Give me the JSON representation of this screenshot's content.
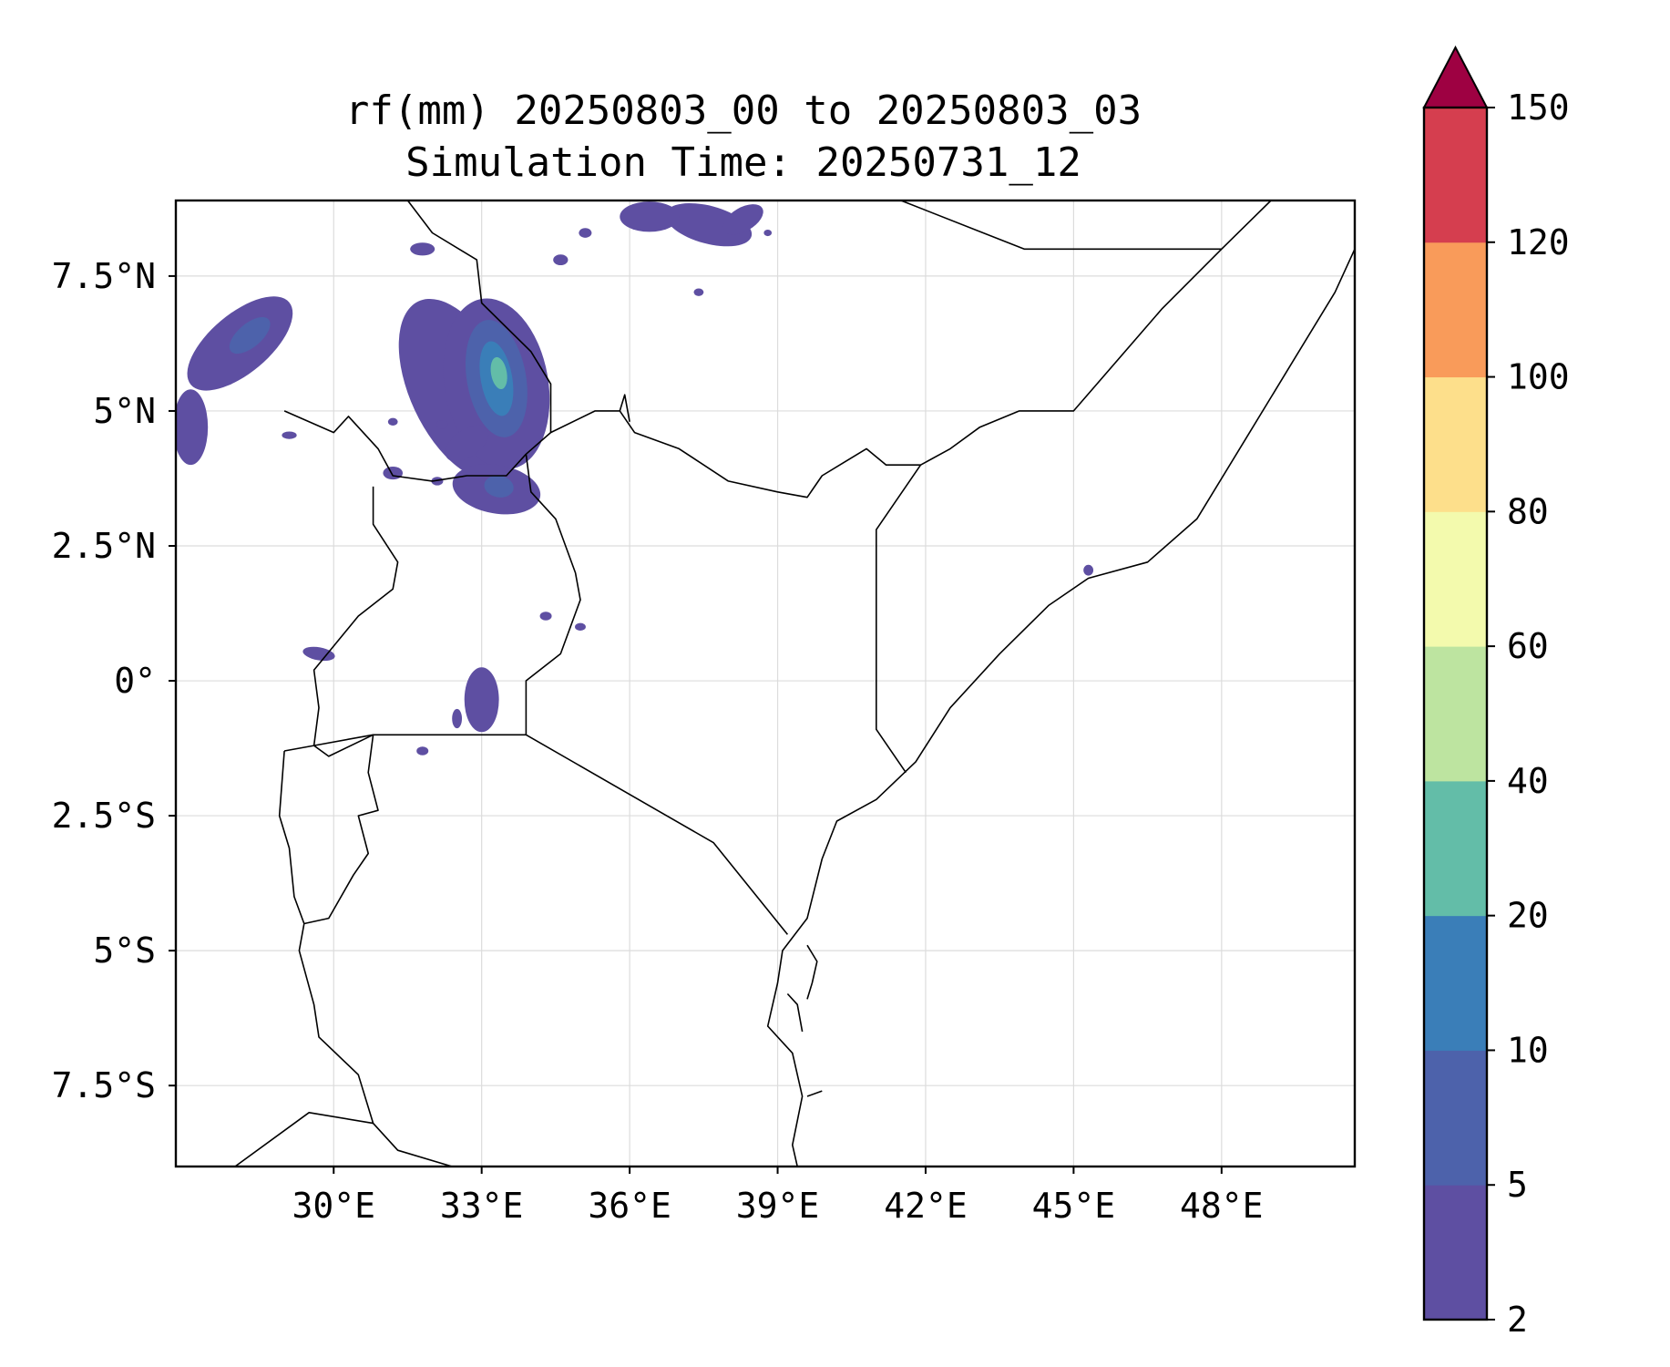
{
  "figure": {
    "title_line1": "rf(mm) 20250803_00 to 20250803_03",
    "title_line2": "Simulation Time: 20250731_12"
  },
  "map": {
    "lon_range": [
      26.8,
      50.7
    ],
    "lat_range": [
      -9.0,
      8.9
    ],
    "x_ticks": [
      {
        "value": 30,
        "label": "30°E"
      },
      {
        "value": 33,
        "label": "33°E"
      },
      {
        "value": 36,
        "label": "36°E"
      },
      {
        "value": 39,
        "label": "39°E"
      },
      {
        "value": 42,
        "label": "42°E"
      },
      {
        "value": 45,
        "label": "45°E"
      },
      {
        "value": 48,
        "label": "48°E"
      }
    ],
    "y_ticks": [
      {
        "value": 7.5,
        "label": "7.5°N"
      },
      {
        "value": 5,
        "label": "5°N"
      },
      {
        "value": 2.5,
        "label": "2.5°N"
      },
      {
        "value": 0,
        "label": "0°"
      },
      {
        "value": -2.5,
        "label": "2.5°S"
      },
      {
        "value": -5,
        "label": "5°S"
      },
      {
        "value": -7.5,
        "label": "7.5°S"
      }
    ],
    "grid": true,
    "rain_cells": [
      {
        "lon": 32.55,
        "lat": 5.4,
        "rx": 1.0,
        "ry": 1.8,
        "rot": -25,
        "level": 0
      },
      {
        "lon": 33.3,
        "lat": 5.5,
        "rx": 1.05,
        "ry": 1.6,
        "rot": -10,
        "level": 0
      },
      {
        "lon": 33.3,
        "lat": 5.6,
        "rx": 0.6,
        "ry": 1.1,
        "rot": -10,
        "level": 1
      },
      {
        "lon": 33.3,
        "lat": 5.6,
        "rx": 0.32,
        "ry": 0.7,
        "rot": -10,
        "level": 2
      },
      {
        "lon": 33.35,
        "lat": 5.7,
        "rx": 0.16,
        "ry": 0.3,
        "rot": -10,
        "level": 3
      },
      {
        "lon": 33.3,
        "lat": 3.55,
        "rx": 0.9,
        "ry": 0.45,
        "rot": 10,
        "level": 0
      },
      {
        "lon": 33.35,
        "lat": 3.6,
        "rx": 0.3,
        "ry": 0.2,
        "rot": 10,
        "level": 1
      },
      {
        "lon": 32.7,
        "lat": 4.4,
        "rx": 0.5,
        "ry": 0.25,
        "rot": -35,
        "level": 0
      },
      {
        "lon": 28.1,
        "lat": 6.25,
        "rx": 1.3,
        "ry": 0.55,
        "rot": -40,
        "level": 0
      },
      {
        "lon": 28.3,
        "lat": 6.4,
        "rx": 0.5,
        "ry": 0.22,
        "rot": -40,
        "level": 1
      },
      {
        "lon": 27.1,
        "lat": 4.7,
        "rx": 0.35,
        "ry": 0.7,
        "rot": 0,
        "level": 0
      },
      {
        "lon": 37.6,
        "lat": 8.45,
        "rx": 0.9,
        "ry": 0.35,
        "rot": 15,
        "level": 0
      },
      {
        "lon": 36.4,
        "lat": 8.6,
        "rx": 0.6,
        "ry": 0.28,
        "rot": 0,
        "level": 0
      },
      {
        "lon": 38.3,
        "lat": 8.55,
        "rx": 0.45,
        "ry": 0.22,
        "rot": -30,
        "level": 0
      },
      {
        "lon": 33.0,
        "lat": -0.35,
        "rx": 0.35,
        "ry": 0.6,
        "rot": 0,
        "level": 0
      },
      {
        "lon": 32.5,
        "lat": -0.7,
        "rx": 0.1,
        "ry": 0.18,
        "rot": 0,
        "level": 0
      },
      {
        "lon": 29.7,
        "lat": 0.5,
        "rx": 0.33,
        "ry": 0.12,
        "rot": 10,
        "level": 0
      },
      {
        "lon": 31.8,
        "lat": 8.0,
        "rx": 0.25,
        "ry": 0.12,
        "rot": 0,
        "level": 0
      },
      {
        "lon": 34.6,
        "lat": 7.8,
        "rx": 0.15,
        "ry": 0.1,
        "rot": 0,
        "level": 0
      },
      {
        "lon": 35.1,
        "lat": 8.3,
        "rx": 0.13,
        "ry": 0.09,
        "rot": 0,
        "level": 0
      },
      {
        "lon": 34.3,
        "lat": 1.2,
        "rx": 0.12,
        "ry": 0.08,
        "rot": 0,
        "level": 0
      },
      {
        "lon": 35.0,
        "lat": 1.0,
        "rx": 0.11,
        "ry": 0.07,
        "rot": 0,
        "level": 0
      },
      {
        "lon": 31.8,
        "lat": -1.3,
        "rx": 0.12,
        "ry": 0.08,
        "rot": 0,
        "level": 0
      },
      {
        "lon": 31.2,
        "lat": 3.85,
        "rx": 0.2,
        "ry": 0.12,
        "rot": 0,
        "level": 0
      },
      {
        "lon": 32.1,
        "lat": 3.7,
        "rx": 0.12,
        "ry": 0.08,
        "rot": 0,
        "level": 0
      },
      {
        "lon": 31.2,
        "lat": 4.8,
        "rx": 0.1,
        "ry": 0.07,
        "rot": 0,
        "level": 0
      },
      {
        "lon": 32.2,
        "lat": 4.75,
        "rx": 0.12,
        "ry": 0.08,
        "rot": 0,
        "level": 0
      },
      {
        "lon": 29.1,
        "lat": 4.55,
        "rx": 0.15,
        "ry": 0.07,
        "rot": 0,
        "level": 0
      },
      {
        "lon": 45.3,
        "lat": 2.05,
        "rx": 0.1,
        "ry": 0.1,
        "rot": 0,
        "level": 0
      },
      {
        "lon": 37.4,
        "lat": 7.2,
        "rx": 0.1,
        "ry": 0.07,
        "rot": 0,
        "level": 0
      },
      {
        "lon": 38.8,
        "lat": 8.3,
        "rx": 0.08,
        "ry": 0.06,
        "rot": 0,
        "level": 0
      }
    ],
    "borders": [
      [
        [
          29.0,
          5.0
        ],
        [
          30.0,
          4.6
        ],
        [
          30.3,
          4.9
        ],
        [
          30.9,
          4.3
        ],
        [
          31.2,
          3.8
        ],
        [
          32.0,
          3.7
        ],
        [
          32.7,
          3.8
        ],
        [
          33.5,
          3.8
        ],
        [
          33.9,
          4.2
        ],
        [
          34.4,
          4.6
        ],
        [
          35.3,
          5.0
        ],
        [
          35.8,
          5.0
        ],
        [
          36.1,
          4.6
        ],
        [
          37.0,
          4.3
        ],
        [
          38.0,
          3.7
        ],
        [
          39.0,
          3.5
        ],
        [
          39.6,
          3.4
        ],
        [
          39.9,
          3.8
        ],
        [
          40.8,
          4.3
        ],
        [
          41.2,
          4.0
        ],
        [
          41.9,
          4.0
        ]
      ],
      [
        [
          34.4,
          4.6
        ],
        [
          34.4,
          5.5
        ],
        [
          34.0,
          6.1
        ],
        [
          33.0,
          7.0
        ],
        [
          32.9,
          7.8
        ],
        [
          32.0,
          8.3
        ],
        [
          31.5,
          8.9
        ]
      ],
      [
        [
          35.8,
          5.0
        ],
        [
          35.9,
          5.3
        ],
        [
          36.0,
          4.8
        ]
      ],
      [
        [
          33.9,
          4.2
        ],
        [
          34.0,
          3.5
        ],
        [
          34.5,
          3.0
        ],
        [
          34.9,
          2.0
        ],
        [
          35.0,
          1.5
        ],
        [
          34.6,
          0.5
        ],
        [
          33.9,
          0.0
        ],
        [
          33.9,
          -1.0
        ]
      ],
      [
        [
          30.8,
          3.6
        ],
        [
          30.8,
          2.9
        ],
        [
          31.3,
          2.2
        ],
        [
          31.2,
          1.7
        ],
        [
          30.5,
          1.2
        ],
        [
          29.6,
          0.2
        ],
        [
          29.7,
          -0.5
        ],
        [
          29.6,
          -1.2
        ],
        [
          29.9,
          -1.4
        ],
        [
          30.8,
          -1.0
        ],
        [
          33.9,
          -1.0
        ],
        [
          37.7,
          -3.0
        ],
        [
          39.2,
          -4.7
        ]
      ],
      [
        [
          29.0,
          -1.3
        ],
        [
          29.6,
          -1.2
        ],
        [
          30.8,
          -1.0
        ],
        [
          30.7,
          -1.7
        ],
        [
          30.9,
          -2.4
        ],
        [
          30.5,
          -2.5
        ],
        [
          30.7,
          -3.2
        ],
        [
          30.4,
          -3.6
        ],
        [
          29.9,
          -4.4
        ],
        [
          29.4,
          -4.5
        ],
        [
          29.3,
          -5.0
        ],
        [
          29.6,
          -6.0
        ],
        [
          29.7,
          -6.6
        ],
        [
          30.5,
          -7.3
        ],
        [
          30.8,
          -8.2
        ],
        [
          31.3,
          -8.7
        ],
        [
          32.4,
          -9.0
        ]
      ],
      [
        [
          29.0,
          -1.3
        ],
        [
          28.9,
          -2.5
        ],
        [
          29.1,
          -3.1
        ],
        [
          29.2,
          -4.0
        ],
        [
          29.4,
          -4.5
        ]
      ],
      [
        [
          28.0,
          -9.0
        ],
        [
          29.5,
          -8.0
        ],
        [
          30.8,
          -8.2
        ]
      ],
      [
        [
          41.9,
          4.0
        ],
        [
          41.0,
          2.8
        ],
        [
          41.0,
          -0.9
        ],
        [
          41.6,
          -1.7
        ]
      ],
      [
        [
          41.9,
          4.0
        ],
        [
          42.5,
          4.3
        ],
        [
          43.1,
          4.7
        ],
        [
          43.9,
          5.0
        ],
        [
          45.0,
          5.0
        ],
        [
          46.8,
          6.9
        ],
        [
          48.0,
          8.0
        ],
        [
          49.0,
          8.9
        ]
      ],
      [
        [
          41.5,
          8.9
        ],
        [
          44.0,
          8.0
        ],
        [
          47.0,
          8.0
        ],
        [
          48.0,
          8.0
        ]
      ],
      [
        [
          50.7,
          8.0
        ],
        [
          50.3,
          7.2
        ],
        [
          49.5,
          6.0
        ],
        [
          48.5,
          4.5
        ],
        [
          47.5,
          3.0
        ],
        [
          46.5,
          2.2
        ],
        [
          45.3,
          1.9
        ],
        [
          44.5,
          1.4
        ],
        [
          43.5,
          0.5
        ],
        [
          42.5,
          -0.5
        ],
        [
          41.8,
          -1.5
        ],
        [
          41.0,
          -2.2
        ],
        [
          40.2,
          -2.6
        ],
        [
          39.9,
          -3.3
        ],
        [
          39.6,
          -4.4
        ],
        [
          39.1,
          -5.0
        ],
        [
          39.0,
          -5.6
        ],
        [
          38.8,
          -6.4
        ],
        [
          39.3,
          -6.9
        ],
        [
          39.5,
          -7.7
        ],
        [
          39.3,
          -8.6
        ],
        [
          39.4,
          -9.0
        ]
      ],
      [
        [
          39.6,
          -4.9
        ],
        [
          39.8,
          -5.2
        ],
        [
          39.7,
          -5.6
        ],
        [
          39.6,
          -5.9
        ]
      ],
      [
        [
          39.2,
          -5.8
        ],
        [
          39.4,
          -6.0
        ],
        [
          39.5,
          -6.5
        ]
      ],
      [
        [
          39.6,
          -7.7
        ],
        [
          39.9,
          -7.6
        ]
      ]
    ]
  },
  "colorbar": {
    "levels": [
      {
        "value": 2,
        "label": "2",
        "color": "#5e4fa2"
      },
      {
        "value": 5,
        "label": "5",
        "color": "#4d62ab"
      },
      {
        "value": 10,
        "label": "10",
        "color": "#3a7eb8"
      },
      {
        "value": 20,
        "label": "20",
        "color": "#63bda8"
      },
      {
        "value": 40,
        "label": "40",
        "color": "#bde4a0"
      },
      {
        "value": 60,
        "label": "60",
        "color": "#f3faad"
      },
      {
        "value": 80,
        "label": "80",
        "color": "#fddf8b"
      },
      {
        "value": 100,
        "label": "100",
        "color": "#f99b5a"
      },
      {
        "value": 120,
        "label": "120",
        "color": "#d53e4f"
      },
      {
        "value": 150,
        "label": "150",
        "color": ""
      }
    ],
    "extend_color": "#9e0142"
  }
}
